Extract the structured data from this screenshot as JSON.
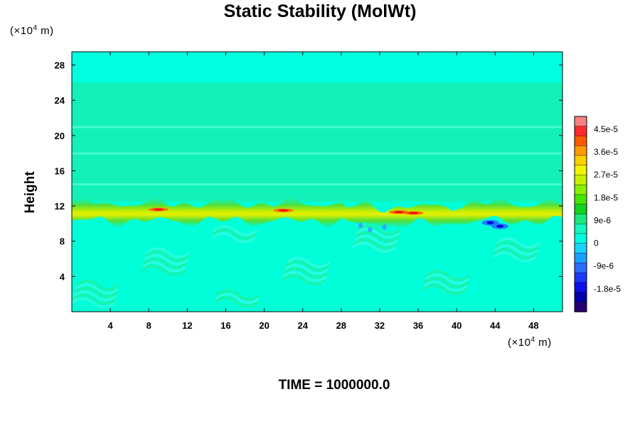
{
  "chart_data": {
    "type": "heatmap",
    "title": "Static Stability (MolWt)",
    "ylabel": "Height",
    "xlabel": "",
    "x_units": "(×10⁴ m)",
    "y_units": "(×10⁴ m)",
    "x_ticks": [
      "4",
      "8",
      "12",
      "16",
      "20",
      "24",
      "28",
      "32",
      "36",
      "40",
      "44",
      "48"
    ],
    "y_ticks": [
      "4",
      "8",
      "12",
      "16",
      "20",
      "24",
      "28"
    ],
    "xlim": [
      0,
      51
    ],
    "ylim": [
      0,
      29.5
    ],
    "colorbar": {
      "labels": [
        "4.5e-5",
        "3.6e-5",
        "2.7e-5",
        "1.8e-5",
        "9e-6",
        "0",
        "-9e-6",
        "-1.8e-5"
      ],
      "range": [
        -2.7e-05,
        5e-05
      ]
    },
    "features": {
      "background_value": 0,
      "upper_layer_top": 26,
      "stable_band_center": 11.3,
      "peak_positive": 4.5e-05,
      "peak_negative": -1.8e-05
    },
    "footer": "TIME = 1000000.0"
  },
  "colors": {
    "plot_background": "#00ffd8",
    "upper_layer": "#00ffdf",
    "lower_region": "#15f6c0"
  }
}
